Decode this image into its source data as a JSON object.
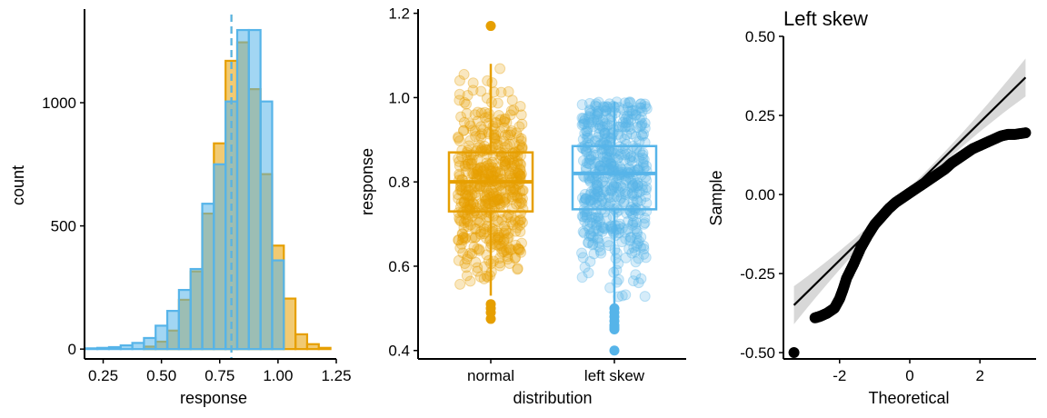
{
  "colors": {
    "normal": "#E69F00",
    "left_skew": "#56B4E9",
    "black": "#000000",
    "band": "#BEBEBE"
  },
  "chart_data": [
    {
      "type": "histogram",
      "xlabel": "response",
      "ylabel": "count",
      "xlim": [
        0.17,
        1.25
      ],
      "ylim": [
        -40,
        1380
      ],
      "x_ticks": [
        "0.25",
        "0.50",
        "0.75",
        "1.00",
        "1.25"
      ],
      "y_ticks": [
        "0",
        "500",
        "1000"
      ],
      "bin_width": 0.05,
      "series": [
        {
          "key": "normal",
          "bin_centers": [
            0.45,
            0.5,
            0.55,
            0.6,
            0.65,
            0.7,
            0.75,
            0.8,
            0.85,
            0.9,
            0.95,
            1.0,
            1.05,
            1.1,
            1.15,
            1.2
          ],
          "counts": [
            10,
            30,
            75,
            200,
            315,
            550,
            835,
            1170,
            1245,
            1055,
            710,
            420,
            205,
            60,
            20,
            5
          ]
        },
        {
          "key": "left_skew",
          "bin_centers": [
            0.2,
            0.25,
            0.3,
            0.35,
            0.4,
            0.45,
            0.5,
            0.55,
            0.6,
            0.65,
            0.7,
            0.75,
            0.8,
            0.85,
            0.9,
            0.95,
            1.0
          ],
          "counts": [
            3,
            5,
            8,
            15,
            25,
            45,
            95,
            155,
            240,
            325,
            590,
            750,
            1005,
            1295,
            1295,
            1005,
            360
          ]
        }
      ],
      "vlines": [
        {
          "x": 0.8,
          "series": "normal"
        },
        {
          "x": 0.8,
          "series": "left_skew"
        }
      ]
    },
    {
      "type": "boxplot",
      "xlabel": "distribution",
      "ylabel": "response",
      "categories": [
        "normal",
        "left skew"
      ],
      "ylim": [
        0.38,
        1.21
      ],
      "y_ticks": [
        "0.4",
        "0.6",
        "0.8",
        "1.0",
        "1.2"
      ],
      "boxes": [
        {
          "category": "normal",
          "key": "normal",
          "q1": 0.73,
          "median": 0.8,
          "q3": 0.87,
          "whisker_low": 0.53,
          "whisker_high": 1.08,
          "outliers": [
            1.17,
            0.51,
            0.5,
            0.49,
            0.475
          ],
          "jitter_min": 0.48,
          "jitter_max": 1.17
        },
        {
          "category": "left skew",
          "key": "left_skew",
          "q1": 0.735,
          "median": 0.82,
          "q3": 0.885,
          "whisker_low": 0.51,
          "whisker_high": 0.99,
          "outliers": [
            0.5,
            0.49,
            0.48,
            0.47,
            0.46,
            0.455,
            0.45,
            0.4
          ],
          "jitter_min": 0.4,
          "jitter_max": 0.99
        }
      ]
    },
    {
      "type": "scatter",
      "title": "Left skew",
      "xlabel": "Theoretical",
      "ylabel": "Sample",
      "xlim": [
        -3.6,
        3.6
      ],
      "ylim": [
        -0.52,
        0.5
      ],
      "x_ticks": [
        "-2",
        "0",
        "2"
      ],
      "y_ticks": [
        "-0.50",
        "-0.25",
        "0.00",
        "0.25",
        "0.50"
      ],
      "points": [
        [
          -3.3,
          -0.5
        ],
        [
          -2.7,
          -0.39
        ],
        [
          -2.55,
          -0.385
        ],
        [
          -2.35,
          -0.375
        ],
        [
          -2.15,
          -0.36
        ],
        [
          -2.0,
          -0.33
        ],
        [
          -1.9,
          -0.3
        ],
        [
          -1.8,
          -0.265
        ],
        [
          -1.6,
          -0.22
        ],
        [
          -1.4,
          -0.17
        ],
        [
          -1.2,
          -0.13
        ],
        [
          -1.0,
          -0.095
        ],
        [
          -0.8,
          -0.07
        ],
        [
          -0.6,
          -0.045
        ],
        [
          -0.4,
          -0.025
        ],
        [
          -0.2,
          -0.01
        ],
        [
          0.0,
          0.005
        ],
        [
          0.2,
          0.02
        ],
        [
          0.4,
          0.035
        ],
        [
          0.6,
          0.05
        ],
        [
          0.8,
          0.065
        ],
        [
          1.0,
          0.08
        ],
        [
          1.2,
          0.1
        ],
        [
          1.4,
          0.115
        ],
        [
          1.6,
          0.13
        ],
        [
          1.8,
          0.145
        ],
        [
          2.0,
          0.155
        ],
        [
          2.2,
          0.165
        ],
        [
          2.4,
          0.175
        ],
        [
          2.6,
          0.185
        ],
        [
          2.8,
          0.19
        ],
        [
          3.0,
          0.19
        ],
        [
          3.3,
          0.195
        ]
      ],
      "fit_line": [
        [
          -3.3,
          -0.35
        ],
        [
          3.3,
          0.37
        ]
      ],
      "band_halfwidth_edge": 0.06,
      "band_halfwidth_center": 0.012
    }
  ]
}
